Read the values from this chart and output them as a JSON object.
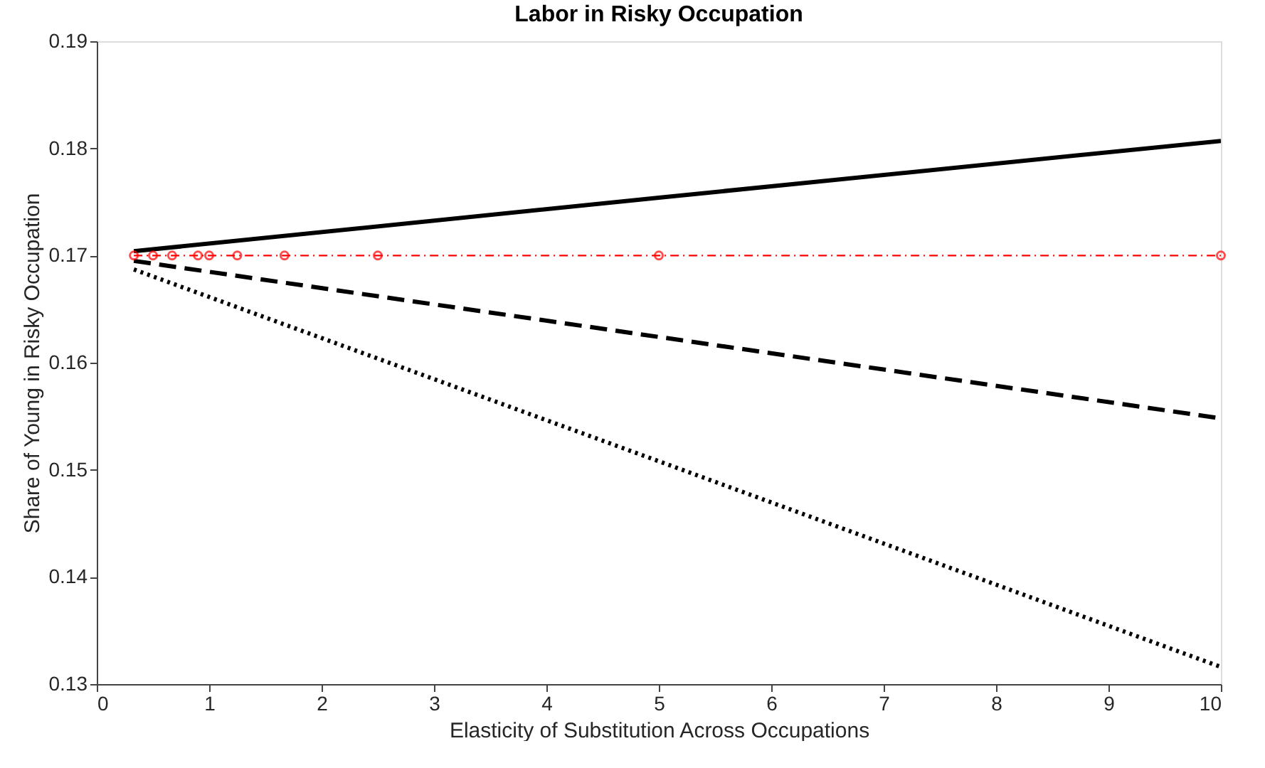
{
  "chart_data": {
    "type": "line",
    "title": "Labor in Risky Occupation",
    "xlabel": "Elasticity of Substitution Across Occupations",
    "ylabel": "Share of Young in Risky Occupation",
    "xlim": [
      0,
      10
    ],
    "xticks": [
      0,
      1,
      2,
      3,
      4,
      5,
      6,
      7,
      8,
      9,
      10
    ],
    "ylim": [
      0.13,
      0.19
    ],
    "yticks": [
      0.13,
      0.14,
      0.15,
      0.16,
      0.17,
      0.18,
      0.19
    ],
    "grid": false,
    "series": [
      {
        "color": "#000000",
        "line_style": "solid",
        "marker": "none",
        "x": [
          0.33,
          5,
          10
        ],
        "values": [
          0.1704,
          0.1754,
          0.1807
        ]
      },
      {
        "color": "#000000",
        "line_style": "dashed",
        "marker": "none",
        "x": [
          0.33,
          5,
          10
        ],
        "values": [
          0.1695,
          0.1624,
          0.1548
        ]
      },
      {
        "color": "#000000",
        "line_style": "dotted",
        "marker": "none",
        "x": [
          0.33,
          5,
          10
        ],
        "values": [
          0.1687,
          0.1508,
          0.1316
        ]
      },
      {
        "color": "#ff0000",
        "line_style": "dashdot",
        "marker": "circle",
        "x": [
          0.33,
          0.5,
          0.67,
          0.9,
          1,
          1.25,
          1.67,
          2.5,
          5,
          10
        ],
        "values": [
          0.17,
          0.17,
          0.17,
          0.17,
          0.17,
          0.17,
          0.17,
          0.17,
          0.17,
          0.17
        ]
      }
    ]
  }
}
